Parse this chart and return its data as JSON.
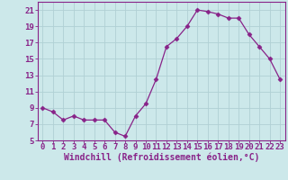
{
  "x": [
    0,
    1,
    2,
    3,
    4,
    5,
    6,
    7,
    8,
    9,
    10,
    11,
    12,
    13,
    14,
    15,
    16,
    17,
    18,
    19,
    20,
    21,
    22,
    23
  ],
  "y": [
    9,
    8.5,
    7.5,
    8,
    7.5,
    7.5,
    7.5,
    6,
    5.5,
    8,
    9.5,
    12.5,
    16.5,
    17.5,
    19,
    21,
    20.8,
    20.5,
    20,
    20,
    18,
    16.5,
    15,
    12.5
  ],
  "line_color": "#882288",
  "marker": "D",
  "marker_size": 2.5,
  "bg_color": "#cce8ea",
  "grid_color": "#b0d0d4",
  "xlabel": "Windchill (Refroidissement éolien,°C)",
  "xlim_min": -0.5,
  "xlim_max": 23.5,
  "ylim_min": 5,
  "ylim_max": 22,
  "yticks": [
    5,
    7,
    9,
    11,
    13,
    15,
    17,
    19,
    21
  ],
  "xticks": [
    0,
    1,
    2,
    3,
    4,
    5,
    6,
    7,
    8,
    9,
    10,
    11,
    12,
    13,
    14,
    15,
    16,
    17,
    18,
    19,
    20,
    21,
    22,
    23
  ],
  "xlabel_fontsize": 7,
  "tick_fontsize": 6.5,
  "axis_color": "#882288",
  "spine_color": "#882288"
}
